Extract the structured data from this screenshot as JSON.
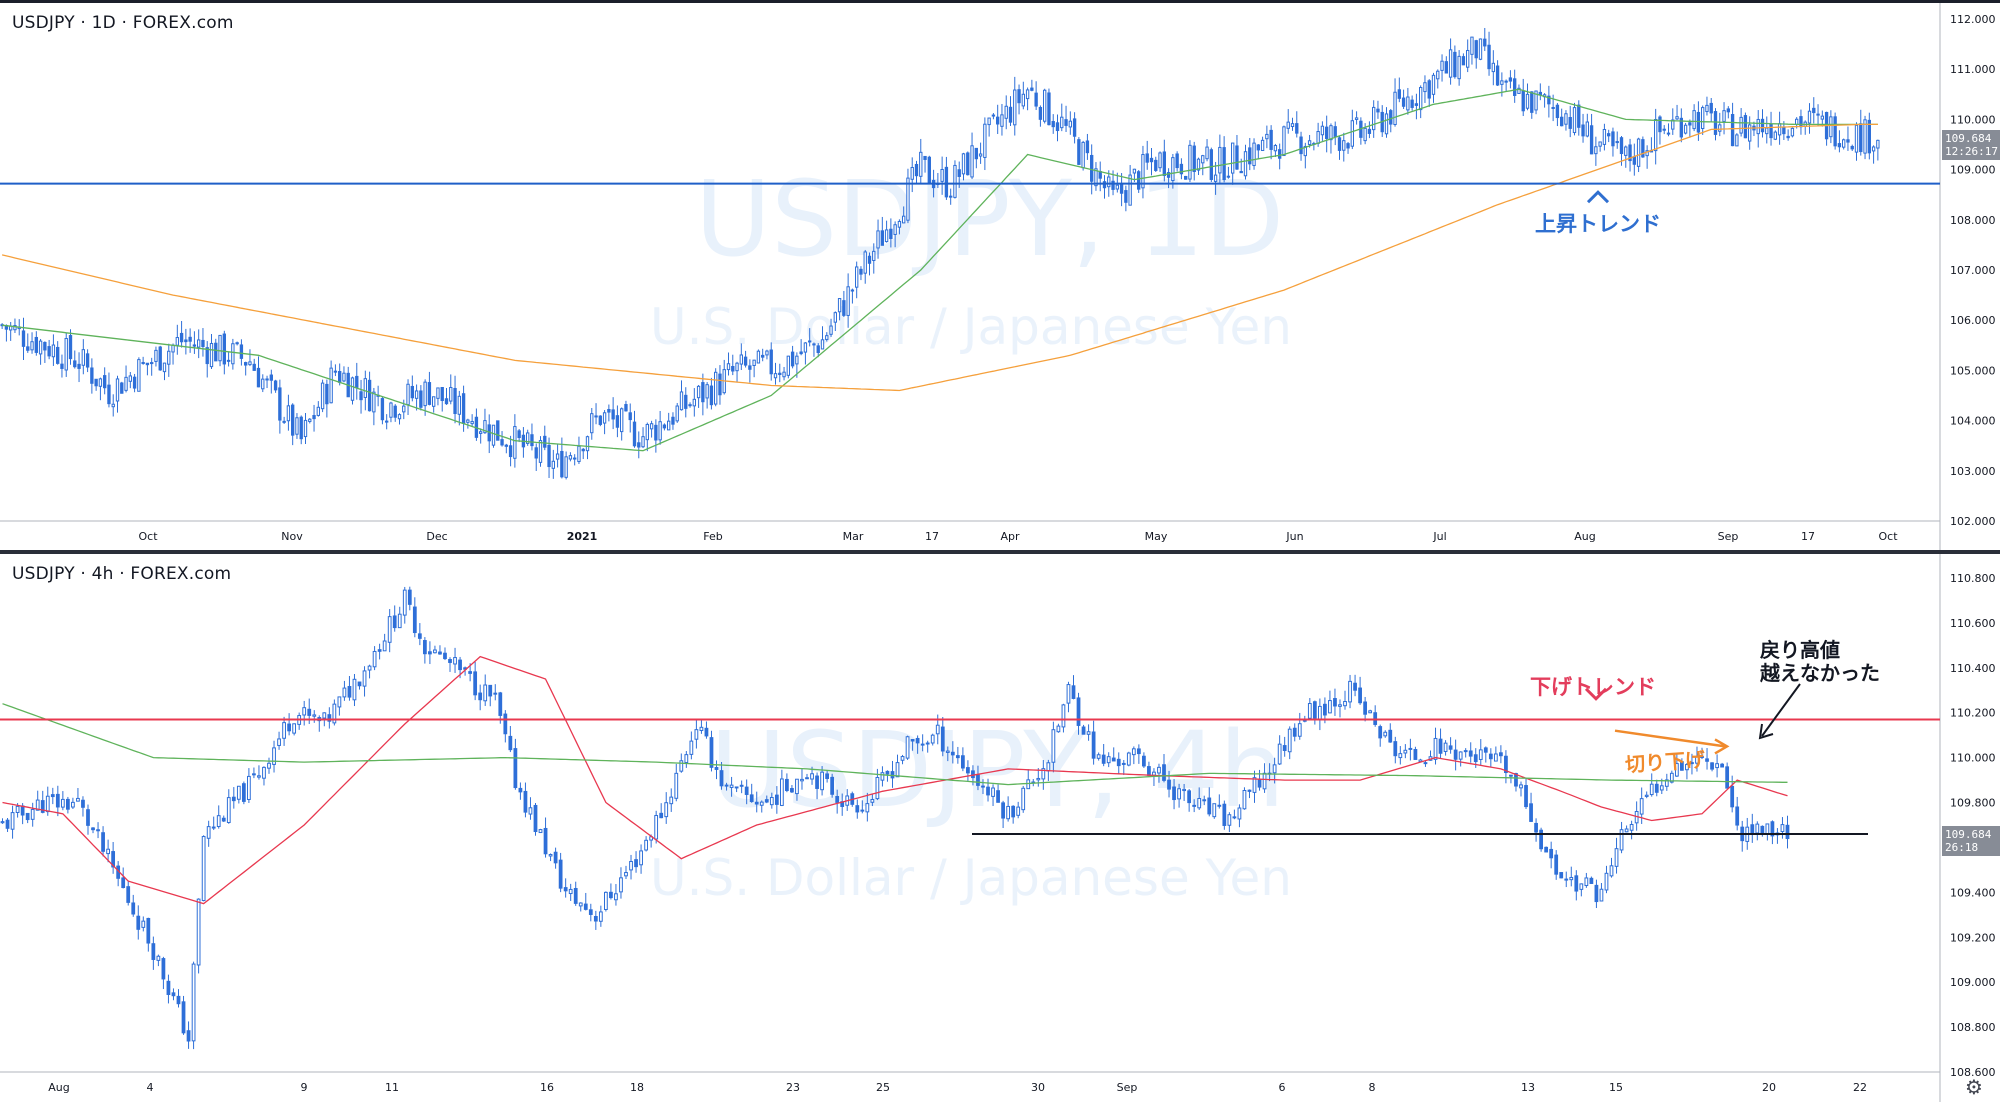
{
  "top_chart": {
    "symbol_label": "USDJPY · 1D · FOREX.com",
    "watermark_title": "USDJPY, 1D",
    "watermark_subtitle": "U.S. Dollar / Japanese Yen",
    "last_price": "109.684",
    "countdown": "12:26:17",
    "annotation_uptrend": "上昇トレンド",
    "colors": {
      "candle_up": "#ffffff",
      "candle_down": "#2e6fd8",
      "ma_green": "#5fb35b",
      "ma_orange": "#f5a03c",
      "support_line": "#1f5fc8",
      "annotation": "#2f6fd0"
    }
  },
  "bottom_chart": {
    "symbol_label": "USDJPY · 4h · FOREX.com",
    "watermark_title": "USDJPY, 4h",
    "watermark_subtitle": "U.S. Dollar / Japanese Yen",
    "last_price": "109.684",
    "countdown": "26:18",
    "annotation_downtrend": "下げトレンド",
    "annotation_lower_highs": "切り下げ",
    "annotation_failed_high_line1": "戻り高値",
    "annotation_failed_high_line2": "越えなかった",
    "colors": {
      "candle_up": "#ffffff",
      "candle_down": "#2e6fd8",
      "ma_red": "#e8384f",
      "ma_green": "#5fb35b",
      "resistance_line": "#e8384f",
      "support_line": "#131722",
      "annotation_red": "#e33d5c",
      "annotation_orange": "#f08a2c"
    }
  },
  "chart_data": [
    {
      "type": "candlestick",
      "title": "USDJPY, 1D",
      "subtitle": "U.S. Dollar / Japanese Yen",
      "x_tick_labels": [
        "Oct",
        "Nov",
        "Dec",
        "2021",
        "Feb",
        "Mar",
        "17",
        "Apr",
        "May",
        "Jun",
        "Jul",
        "Aug",
        "Sep",
        "17",
        "Oct"
      ],
      "y_tick_labels": [
        "112.000",
        "111.000",
        "110.000",
        "109.000",
        "108.000",
        "107.000",
        "106.000",
        "105.000",
        "104.000",
        "103.000",
        "102.000"
      ],
      "ylim": [
        102.0,
        112.0
      ],
      "horizontal_lines": [
        {
          "price": 108.72,
          "label": "support"
        }
      ],
      "series": [
        {
          "name": "",
          "kind": "ma",
          "anchors": [
            [
              0,
              105.9
            ],
            [
              60,
              105.3
            ],
            [
              120,
              103.6
            ],
            [
              150,
              103.4
            ],
            [
              180,
              104.5
            ],
            [
              215,
              107.0
            ],
            [
              240,
              109.3
            ],
            [
              265,
              108.8
            ],
            [
              300,
              109.3
            ],
            [
              335,
              110.3
            ],
            [
              355,
              110.6
            ],
            [
              380,
              110.0
            ],
            [
              420,
              109.9
            ],
            [
              435,
              109.9
            ]
          ]
        },
        {
          "name": "",
          "kind": "ma",
          "anchors": [
            [
              0,
              107.3
            ],
            [
              40,
              106.5
            ],
            [
              120,
              105.2
            ],
            [
              180,
              104.7
            ],
            [
              210,
              104.6
            ],
            [
              250,
              105.3
            ],
            [
              300,
              106.6
            ],
            [
              350,
              108.3
            ],
            [
              400,
              109.8
            ],
            [
              435,
              109.9
            ]
          ]
        }
      ],
      "anchors_ohlc_close": [
        [
          0,
          105.9
        ],
        [
          18,
          105.2
        ],
        [
          25,
          104.6
        ],
        [
          42,
          105.6
        ],
        [
          50,
          105.4
        ],
        [
          58,
          105.2
        ],
        [
          70,
          103.6
        ],
        [
          78,
          105.0
        ],
        [
          90,
          104.3
        ],
        [
          100,
          104.6
        ],
        [
          115,
          103.8
        ],
        [
          130,
          103.1
        ],
        [
          140,
          104.1
        ],
        [
          150,
          103.7
        ],
        [
          160,
          104.3
        ],
        [
          172,
          105.0
        ],
        [
          182,
          105.1
        ],
        [
          192,
          105.6
        ],
        [
          200,
          106.8
        ],
        [
          215,
          109.0
        ],
        [
          222,
          108.7
        ],
        [
          232,
          109.8
        ],
        [
          240,
          110.6
        ],
        [
          248,
          109.9
        ],
        [
          260,
          108.4
        ],
        [
          270,
          109.2
        ],
        [
          285,
          109.1
        ],
        [
          300,
          109.6
        ],
        [
          318,
          109.7
        ],
        [
          335,
          110.8
        ],
        [
          345,
          111.4
        ],
        [
          352,
          110.5
        ],
        [
          365,
          110.2
        ],
        [
          372,
          109.6
        ],
        [
          380,
          109.2
        ],
        [
          387,
          109.7
        ],
        [
          395,
          110.1
        ],
        [
          405,
          109.8
        ],
        [
          420,
          110.0
        ],
        [
          430,
          109.8
        ],
        [
          435,
          109.68
        ]
      ]
    },
    {
      "type": "candlestick",
      "title": "USDJPY, 4h",
      "subtitle": "U.S. Dollar / Japanese Yen",
      "x_tick_labels": [
        "Aug",
        "4",
        "9",
        "11",
        "16",
        "18",
        "23",
        "25",
        "30",
        "Sep",
        "6",
        "8",
        "13",
        "15",
        "20",
        "22"
      ],
      "y_tick_labels": [
        "110.800",
        "110.600",
        "110.400",
        "110.200",
        "110.000",
        "109.800",
        "109.600",
        "109.400",
        "109.200",
        "109.000",
        "108.800",
        "108.600"
      ],
      "ylim": [
        108.6,
        110.8
      ],
      "horizontal_lines": [
        {
          "price": 110.17,
          "label": "resistance"
        },
        {
          "price": 109.66,
          "label": "support"
        }
      ],
      "series": [
        {
          "name": "",
          "kind": "ma",
          "anchors": [
            [
              0,
              109.8
            ],
            [
              12,
              109.75
            ],
            [
              25,
              109.45
            ],
            [
              40,
              109.35
            ],
            [
              60,
              109.7
            ],
            [
              80,
              110.15
            ],
            [
              95,
              110.45
            ],
            [
              108,
              110.35
            ],
            [
              120,
              109.8
            ],
            [
              135,
              109.55
            ],
            [
              150,
              109.7
            ],
            [
              175,
              109.85
            ],
            [
              200,
              109.95
            ],
            [
              230,
              109.92
            ],
            [
              255,
              109.9
            ],
            [
              270,
              109.9
            ],
            [
              285,
              110.0
            ],
            [
              298,
              109.95
            ],
            [
              310,
              109.85
            ],
            [
              318,
              109.78
            ],
            [
              328,
              109.72
            ],
            [
              338,
              109.75
            ],
            [
              345,
              109.9
            ],
            [
              355,
              109.83
            ]
          ]
        },
        {
          "name": "",
          "kind": "ma",
          "anchors": [
            [
              0,
              110.24
            ],
            [
              30,
              110.0
            ],
            [
              60,
              109.98
            ],
            [
              100,
              110.0
            ],
            [
              130,
              109.98
            ],
            [
              160,
              109.95
            ],
            [
              200,
              109.88
            ],
            [
              240,
              109.93
            ],
            [
              280,
              109.92
            ],
            [
              320,
              109.9
            ],
            [
              355,
              109.89
            ]
          ]
        }
      ],
      "anchors_ohlc_close": [
        [
          0,
          109.7
        ],
        [
          8,
          109.8
        ],
        [
          15,
          109.8
        ],
        [
          22,
          109.5
        ],
        [
          30,
          109.15
        ],
        [
          37,
          108.75
        ],
        [
          40,
          109.65
        ],
        [
          50,
          109.9
        ],
        [
          58,
          110.2
        ],
        [
          64,
          110.15
        ],
        [
          72,
          110.4
        ],
        [
          80,
          110.7
        ],
        [
          84,
          110.5
        ],
        [
          90,
          110.4
        ],
        [
          98,
          110.25
        ],
        [
          102,
          109.9
        ],
        [
          108,
          109.6
        ],
        [
          112,
          109.4
        ],
        [
          118,
          109.3
        ],
        [
          126,
          109.55
        ],
        [
          132,
          109.8
        ],
        [
          138,
          110.15
        ],
        [
          144,
          109.85
        ],
        [
          152,
          109.8
        ],
        [
          160,
          109.95
        ],
        [
          168,
          109.8
        ],
        [
          172,
          109.8
        ],
        [
          180,
          110.05
        ],
        [
          186,
          110.1
        ],
        [
          193,
          109.92
        ],
        [
          200,
          109.75
        ],
        [
          208,
          110.0
        ],
        [
          212,
          110.3
        ],
        [
          218,
          109.98
        ],
        [
          226,
          110.0
        ],
        [
          236,
          109.8
        ],
        [
          244,
          109.72
        ],
        [
          252,
          109.95
        ],
        [
          258,
          110.18
        ],
        [
          268,
          110.3
        ],
        [
          276,
          110.05
        ],
        [
          280,
          110.0
        ],
        [
          286,
          110.05
        ],
        [
          294,
          110.0
        ],
        [
          299,
          109.95
        ],
        [
          304,
          109.75
        ],
        [
          308,
          109.52
        ],
        [
          312,
          109.45
        ],
        [
          318,
          109.4
        ],
        [
          322,
          109.65
        ],
        [
          328,
          109.85
        ],
        [
          332,
          109.97
        ],
        [
          338,
          110.0
        ],
        [
          342,
          109.98
        ],
        [
          345,
          109.68
        ]
      ]
    }
  ]
}
